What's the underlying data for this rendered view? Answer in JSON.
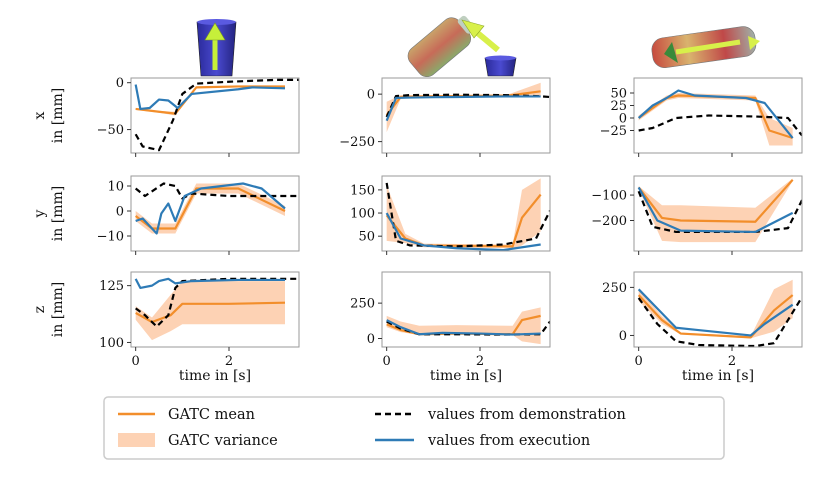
{
  "figure": {
    "xlabel": "time in [s]",
    "legend": {
      "mean": "GATC mean",
      "variance": "GATC variance",
      "demo": "values from demonstration",
      "exec": "values from execution"
    },
    "colors": {
      "mean": "#f28e2b",
      "variance": "#fdd2b4",
      "demo": "#000000",
      "exec": "#2e7bb6"
    },
    "icons": [
      "cup-with-up-arrow-icon",
      "bottle-pour-into-cup-icon",
      "bottle-lying-with-arrow-icon"
    ]
  },
  "chart_data": [
    {
      "type": "line",
      "row_label": "x",
      "unit_label": "in [mm]",
      "xlim": [
        -0.1,
        3.5
      ],
      "ylim": [
        -75,
        5
      ],
      "xticks": [
        0,
        2
      ],
      "yticks": [
        -50,
        0
      ],
      "ytick_labels": [
        "−50",
        "0"
      ],
      "xtick_labels": [
        "0",
        "2"
      ],
      "mean": {
        "x": [
          0,
          0.5,
          0.85,
          1.3,
          2.2,
          3.2
        ],
        "y": [
          -28,
          -31,
          -33,
          -5,
          -4,
          -4
        ]
      },
      "variance": {
        "x": [
          0,
          0.5,
          0.85,
          1.3,
          2.2,
          3.2
        ],
        "lo": [
          -29,
          -32,
          -35,
          -6,
          -5,
          -5
        ],
        "hi": [
          -27,
          -30,
          -31,
          -4,
          -3,
          -3
        ]
      },
      "demo": {
        "x": [
          0,
          0.15,
          0.5,
          0.8,
          1.0,
          1.3,
          2.0,
          3.0,
          3.5
        ],
        "y": [
          -55,
          -68,
          -72,
          -40,
          -12,
          -1,
          1,
          3,
          3
        ]
      },
      "exec": {
        "x": [
          0,
          0.1,
          0.3,
          0.5,
          0.7,
          0.9,
          1.2,
          2.2,
          2.5,
          3.2
        ],
        "y": [
          -2,
          -28,
          -27,
          -18,
          -19,
          -27,
          -12,
          -7,
          -5,
          -6
        ]
      }
    },
    {
      "type": "line",
      "row_label": "",
      "unit_label": "",
      "xlim": [
        -0.1,
        3.5
      ],
      "ylim": [
        -310,
        85
      ],
      "xticks": [
        0,
        2
      ],
      "yticks": [
        -250,
        0
      ],
      "ytick_labels": [
        "−250",
        "0"
      ],
      "xtick_labels": [
        "0",
        "2"
      ],
      "mean": {
        "x": [
          0,
          0.3,
          0.7,
          2.6,
          3.3
        ],
        "y": [
          -110,
          -15,
          -12,
          -8,
          15
        ]
      },
      "variance": {
        "x": [
          0,
          0.3,
          0.7,
          2.6,
          3.3
        ],
        "lo": [
          -200,
          -25,
          -18,
          -14,
          -10
        ],
        "hi": [
          -40,
          -5,
          -6,
          -2,
          60
        ]
      },
      "demo": {
        "x": [
          0,
          0.2,
          0.5,
          1.5,
          2.5,
          3.2,
          3.5
        ],
        "y": [
          -120,
          -10,
          -5,
          -3,
          -5,
          -10,
          -15
        ]
      },
      "exec": {
        "x": [
          0,
          0.2,
          0.5,
          1.0,
          1.5,
          2.5,
          3.3
        ],
        "y": [
          -140,
          -20,
          -18,
          -16,
          -15,
          -12,
          -12
        ]
      }
    },
    {
      "type": "line",
      "row_label": "",
      "unit_label": "",
      "xlim": [
        -0.1,
        3.5
      ],
      "ylim": [
        -70,
        80
      ],
      "xticks": [
        0,
        2
      ],
      "yticks": [
        -25,
        0,
        25,
        50
      ],
      "ytick_labels": [
        "−25",
        "0",
        "25",
        "50"
      ],
      "xtick_labels": [
        "0",
        "2"
      ],
      "mean": {
        "x": [
          0,
          0.6,
          0.85,
          2.5,
          2.8,
          3.3
        ],
        "y": [
          0,
          40,
          45,
          40,
          -25,
          -40
        ]
      },
      "variance": {
        "x": [
          0,
          0.6,
          0.85,
          2.5,
          2.8,
          3.3
        ],
        "lo": [
          -5,
          35,
          40,
          35,
          -55,
          -55
        ],
        "hi": [
          5,
          45,
          50,
          45,
          0,
          -20
        ]
      },
      "demo": {
        "x": [
          0,
          0.3,
          0.8,
          1.5,
          2.5,
          3.2,
          3.5
        ],
        "y": [
          -25,
          -20,
          0,
          5,
          3,
          0,
          -35
        ]
      },
      "exec": {
        "x": [
          0,
          0.3,
          0.6,
          0.85,
          1.2,
          2.3,
          2.7,
          3.3
        ],
        "y": [
          0,
          25,
          40,
          55,
          45,
          40,
          30,
          -40
        ]
      }
    },
    {
      "type": "line",
      "row_label": "y",
      "unit_label": "in [mm]",
      "xlim": [
        -0.1,
        3.5
      ],
      "ylim": [
        -16,
        14
      ],
      "xticks": [
        0,
        2
      ],
      "yticks": [
        -10,
        0,
        10
      ],
      "ytick_labels": [
        "−10",
        "0",
        "10"
      ],
      "xtick_labels": [
        "0",
        "2"
      ],
      "mean": {
        "x": [
          0,
          0.35,
          0.85,
          1.3,
          2.2,
          3.2
        ],
        "y": [
          -2,
          -7,
          -7,
          9,
          9,
          0
        ]
      },
      "variance": {
        "x": [
          0,
          0.35,
          0.85,
          1.3,
          2.2,
          3.2
        ],
        "lo": [
          -4,
          -9,
          -9,
          7,
          7,
          -2
        ],
        "hi": [
          0,
          -5,
          -5,
          11,
          11,
          2
        ]
      },
      "demo": {
        "x": [
          0,
          0.2,
          0.6,
          0.85,
          1.0,
          1.2,
          2.0,
          3.0,
          3.5
        ],
        "y": [
          9,
          6,
          11,
          10,
          5,
          7,
          6,
          6,
          6
        ]
      },
      "exec": {
        "x": [
          0,
          0.15,
          0.45,
          0.55,
          0.7,
          0.85,
          1.05,
          1.4,
          2.3,
          2.7,
          3.2
        ],
        "y": [
          -4,
          -3,
          -9,
          -1,
          3,
          -4,
          6,
          9,
          11,
          9,
          1
        ]
      }
    },
    {
      "type": "line",
      "row_label": "",
      "unit_label": "",
      "xlim": [
        -0.1,
        3.5
      ],
      "ylim": [
        18,
        180
      ],
      "xticks": [
        0,
        2
      ],
      "yticks": [
        50,
        100,
        150
      ],
      "ytick_labels": [
        "50",
        "100",
        "150"
      ],
      "xtick_labels": [
        "0",
        "2"
      ],
      "mean": {
        "x": [
          0,
          0.4,
          0.8,
          2.7,
          2.9,
          3.3
        ],
        "y": [
          95,
          45,
          30,
          28,
          90,
          140
        ]
      },
      "variance": {
        "x": [
          0,
          0.4,
          0.8,
          2.7,
          2.9,
          3.3
        ],
        "lo": [
          40,
          35,
          26,
          24,
          30,
          60
        ],
        "hi": [
          160,
          55,
          34,
          32,
          150,
          175
        ]
      },
      "demo": {
        "x": [
          0,
          0.2,
          0.5,
          1.5,
          2.5,
          3.2,
          3.5
        ],
        "y": [
          165,
          40,
          30,
          28,
          32,
          45,
          105
        ]
      },
      "exec": {
        "x": [
          0,
          0.3,
          0.8,
          1.5,
          2.5,
          3.3
        ],
        "y": [
          100,
          45,
          30,
          24,
          20,
          32
        ]
      }
    },
    {
      "type": "line",
      "row_label": "",
      "unit_label": "",
      "xlim": [
        -0.1,
        3.5
      ],
      "ylim": [
        -320,
        -25
      ],
      "xticks": [
        0,
        2
      ],
      "yticks": [
        -200,
        -100
      ],
      "ytick_labels": [
        "−200",
        "−100"
      ],
      "xtick_labels": [
        "0",
        "2"
      ],
      "mean": {
        "x": [
          0,
          0.5,
          0.9,
          2.5,
          3.3
        ],
        "y": [
          -70,
          -190,
          -200,
          -205,
          -40
        ]
      },
      "variance": {
        "x": [
          0,
          0.5,
          0.9,
          2.5,
          3.3
        ],
        "lo": [
          -75,
          -280,
          -285,
          -285,
          -45
        ],
        "hi": [
          -65,
          -140,
          -140,
          -150,
          -35
        ]
      },
      "demo": {
        "x": [
          0,
          0.3,
          0.8,
          1.5,
          2.5,
          3.2,
          3.5
        ],
        "y": [
          -85,
          -225,
          -245,
          -245,
          -245,
          -230,
          -120
        ]
      },
      "exec": {
        "x": [
          0,
          0.4,
          0.9,
          2.5,
          3.3
        ],
        "y": [
          -70,
          -200,
          -240,
          -245,
          -170
        ]
      }
    },
    {
      "type": "line",
      "row_label": "z",
      "unit_label": "in [mm]",
      "xlim": [
        -0.1,
        3.5
      ],
      "ylim": [
        98,
        131
      ],
      "xticks": [
        0,
        2
      ],
      "yticks": [
        100,
        125
      ],
      "ytick_labels": [
        "100",
        "125"
      ],
      "xtick_labels": [
        "0",
        "2"
      ],
      "mean": {
        "x": [
          0,
          0.35,
          0.75,
          1.0,
          2.0,
          3.2
        ],
        "y": [
          113,
          109,
          112,
          117,
          117,
          117.5
        ]
      },
      "variance": {
        "x": [
          0,
          0.35,
          0.75,
          1.0,
          2.0,
          3.2
        ],
        "lo": [
          110,
          101,
          105,
          108,
          108,
          108
        ],
        "hi": [
          116,
          111,
          121,
          127,
          127,
          127
        ]
      },
      "demo": {
        "x": [
          0,
          0.2,
          0.45,
          0.7,
          0.85,
          1.0,
          2.0,
          3.5
        ],
        "y": [
          115,
          112,
          107,
          112,
          124,
          127,
          128,
          128
        ]
      },
      "exec": {
        "x": [
          0,
          0.1,
          0.35,
          0.5,
          0.7,
          0.85,
          1.2,
          2.2,
          3.2
        ],
        "y": [
          128,
          124,
          125,
          127,
          128,
          126,
          127,
          127.5,
          127.5
        ]
      }
    },
    {
      "type": "line",
      "row_label": "",
      "unit_label": "",
      "xlim": [
        -0.1,
        3.5
      ],
      "ylim": [
        -60,
        470
      ],
      "xticks": [
        0,
        2
      ],
      "yticks": [
        0,
        250
      ],
      "ytick_labels": [
        "0",
        "250"
      ],
      "xtick_labels": [
        "0",
        "2"
      ],
      "mean": {
        "x": [
          0,
          0.3,
          0.7,
          1.5,
          2.7,
          2.9,
          3.3
        ],
        "y": [
          100,
          60,
          30,
          35,
          30,
          130,
          160
        ]
      },
      "variance": {
        "x": [
          0,
          0.3,
          0.7,
          1.5,
          2.7,
          2.9,
          3.3
        ],
        "lo": [
          80,
          45,
          25,
          30,
          25,
          -20,
          -40
        ]
      },
      "demo": {
        "x": [
          0,
          0.3,
          0.7,
          1.5,
          2.5,
          3.3,
          3.5
        ],
        "y": [
          120,
          70,
          30,
          30,
          28,
          30,
          120
        ]
      },
      "exec": {
        "x": [
          0,
          0.3,
          0.7,
          1.2,
          2.0,
          2.7,
          3.3
        ],
        "y": [
          130,
          80,
          30,
          40,
          35,
          28,
          35
        ]
      }
    },
    {
      "type": "line",
      "row_label": "",
      "unit_label": "",
      "xlim": [
        -0.1,
        3.5
      ],
      "ylim": [
        -60,
        330
      ],
      "xticks": [
        0,
        2
      ],
      "yticks": [
        0,
        250
      ],
      "ytick_labels": [
        "0",
        "250"
      ],
      "xtick_labels": [
        "0",
        "2"
      ],
      "mean": {
        "x": [
          0,
          0.5,
          0.9,
          2.4,
          2.9,
          3.3
        ],
        "y": [
          210,
          80,
          10,
          -10,
          130,
          210
        ]
      },
      "variance": {
        "x": [
          0,
          0.5,
          0.9,
          2.4,
          2.9,
          3.3
        ],
        "lo": [
          180,
          60,
          5,
          -15,
          20,
          90
        ],
        "hi": [
          240,
          100,
          15,
          -5,
          240,
          290
        ]
      },
      "demo": {
        "x": [
          0,
          0.4,
          0.8,
          1.3,
          2.5,
          2.9,
          3.5
        ],
        "y": [
          195,
          60,
          -30,
          -50,
          -55,
          -40,
          200
        ]
      },
      "exec": {
        "x": [
          0,
          0.4,
          0.8,
          1.2,
          2.4,
          2.7,
          3.3
        ],
        "y": [
          240,
          140,
          40,
          30,
          0,
          60,
          160
        ]
      }
    }
  ]
}
